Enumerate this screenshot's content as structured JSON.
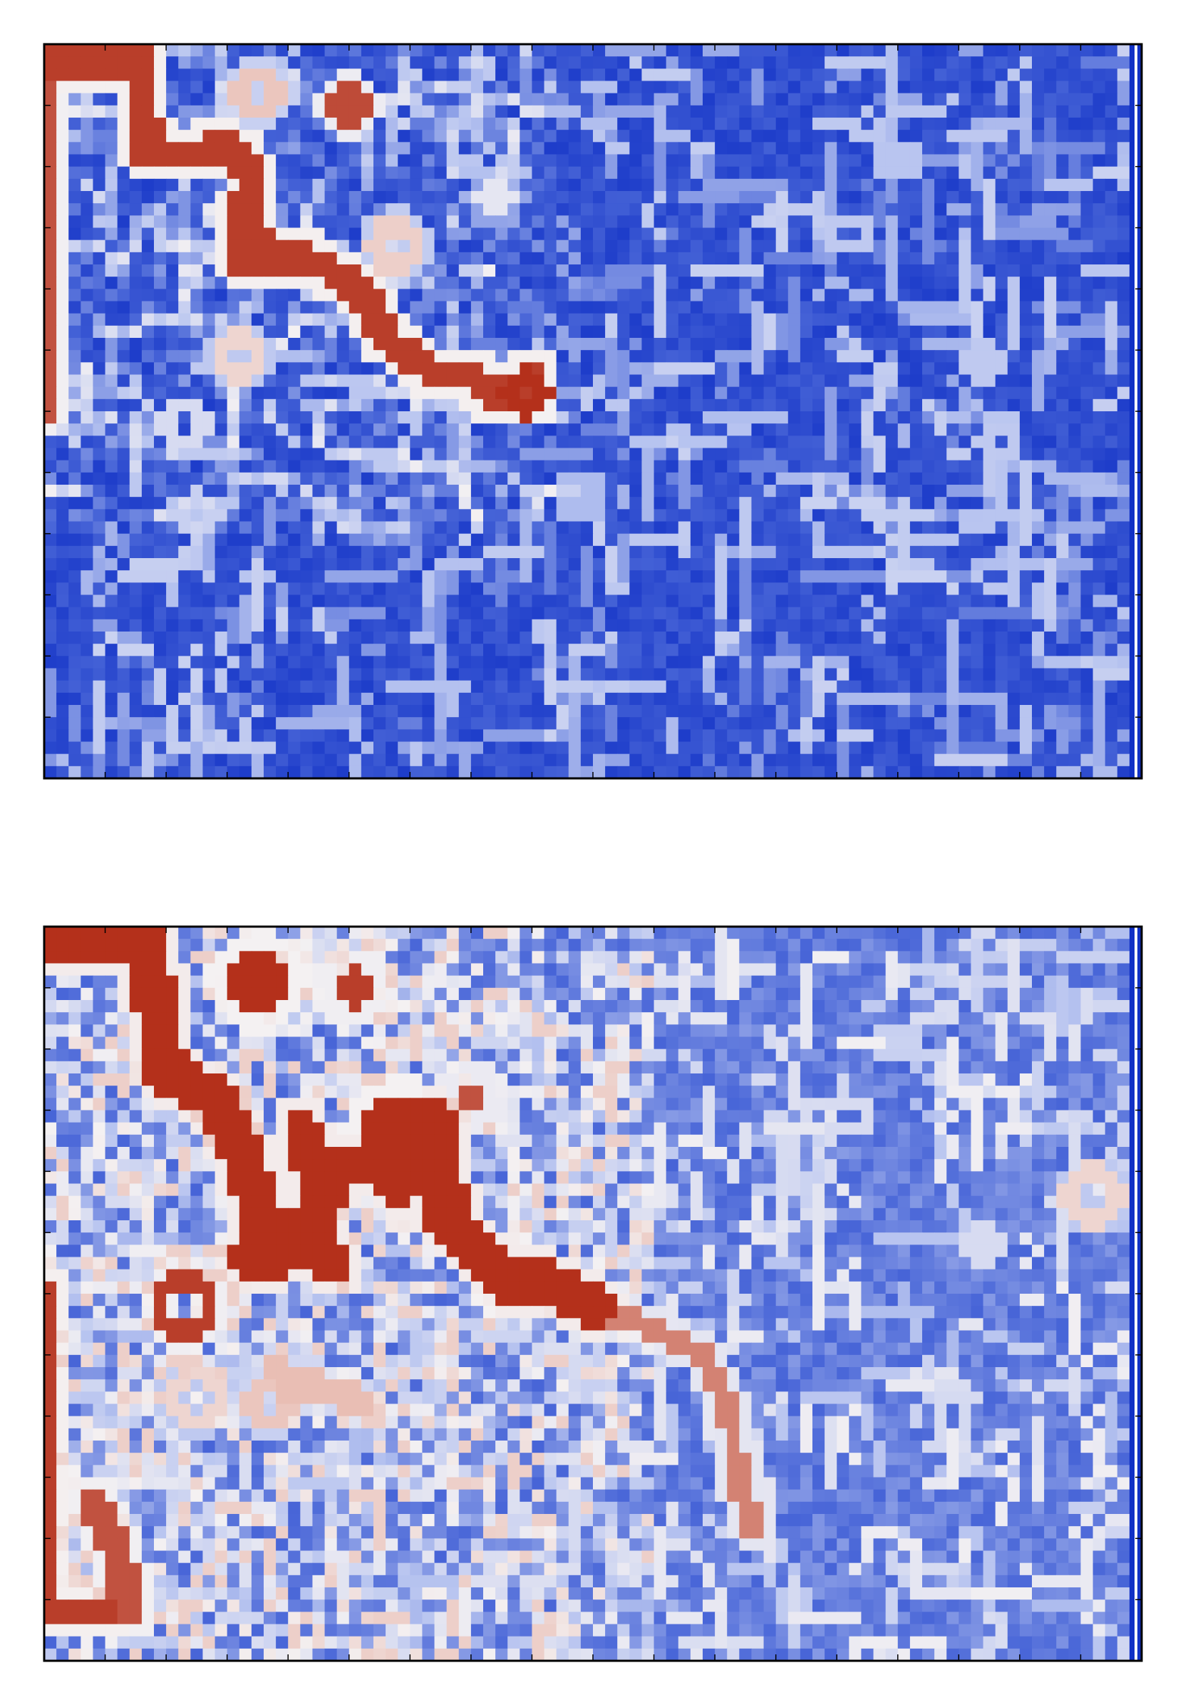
{
  "figure": {
    "background": "#ffffff"
  },
  "chart_data": [
    {
      "type": "heatmap",
      "panel": "top",
      "title": "",
      "xlabel": "",
      "ylabel": "",
      "grid_size": [
        90,
        60
      ],
      "colormap": "coolwarm",
      "colormap_stops": [
        "#0b2bc4",
        "#4a67d8",
        "#b9c5f0",
        "#f4f1f2",
        "#e8b8ad",
        "#b4301b"
      ],
      "value_range": [
        0,
        1
      ],
      "tick_labels": "hidden",
      "background_level": 0.12,
      "hot_paths": [
        {
          "level": 0.98,
          "width": 1.2,
          "points": [
            [
              0,
              1.5
            ],
            [
              8,
              1.5
            ],
            [
              8.5,
              9
            ],
            [
              13,
              9
            ],
            [
              14,
              8
            ],
            [
              16,
              9
            ],
            [
              17,
              11
            ],
            [
              16,
              16
            ],
            [
              16.5,
              18
            ],
            [
              19,
              18
            ],
            [
              21,
              17
            ],
            [
              24,
              19
            ],
            [
              26,
              20
            ],
            [
              28,
              24
            ],
            [
              32,
              27
            ],
            [
              35,
              27
            ],
            [
              37,
              29
            ],
            [
              40,
              27
            ]
          ]
        },
        {
          "level": 0.95,
          "width": 1.0,
          "points": [
            [
              0,
              1.5
            ],
            [
              0,
              30
            ]
          ]
        },
        {
          "level": 0.98,
          "width": 1.0,
          "points": [
            [
              17,
              12
            ],
            [
              18,
              18
            ]
          ]
        }
      ],
      "hot_rings": [
        {
          "cx": 17.5,
          "cy": 4.0,
          "r": 1.6,
          "level": 0.75
        },
        {
          "cx": 25.0,
          "cy": 5.0,
          "r": 1.2,
          "level": 0.96
        },
        {
          "cx": 28.8,
          "cy": 16.5,
          "r": 1.6,
          "level": 0.72
        },
        {
          "cx": 16.0,
          "cy": 25.5,
          "r": 1.4,
          "level": 0.7
        },
        {
          "cx": 37.0,
          "cy": 12.5,
          "r": 1.0,
          "level": 0.55
        },
        {
          "cx": 39.5,
          "cy": 28.5,
          "r": 1.4,
          "level": 1.0
        }
      ],
      "cold_rings": [
        {
          "cx": 11.5,
          "cy": 31.0,
          "r": 1.4,
          "level": 0.5
        },
        {
          "cx": 12.5,
          "cy": 38.5,
          "r": 1.3,
          "level": 0.45
        },
        {
          "cx": 66.0,
          "cy": 15.5,
          "r": 1.3,
          "level": 0.42
        },
        {
          "cx": 77.0,
          "cy": 26.0,
          "r": 1.2,
          "level": 0.42
        },
        {
          "cx": 78.5,
          "cy": 32.5,
          "r": 1.2,
          "level": 0.42
        },
        {
          "cx": 44.0,
          "cy": 37.0,
          "r": 1.4,
          "level": 0.38
        },
        {
          "cx": 70.0,
          "cy": 9.5,
          "r": 1.2,
          "level": 0.4
        }
      ],
      "light_zone": {
        "x": [
          0,
          42
        ],
        "y": [
          0,
          40
        ],
        "boost": 0.12
      }
    },
    {
      "type": "heatmap",
      "panel": "bottom",
      "title": "",
      "xlabel": "",
      "ylabel": "",
      "grid_size": [
        90,
        60
      ],
      "colormap": "coolwarm",
      "colormap_stops": [
        "#0b2bc4",
        "#4a67d8",
        "#b9c5f0",
        "#f4f1f2",
        "#e8b8ad",
        "#b4301b"
      ],
      "value_range": [
        0,
        1
      ],
      "tick_labels": "hidden",
      "background_level": 0.25,
      "hot_paths": [
        {
          "level": 1.0,
          "width": 1.8,
          "points": [
            [
              0,
              1
            ],
            [
              8,
              1
            ],
            [
              9,
              5
            ],
            [
              10,
              12
            ],
            [
              14,
              14
            ],
            [
              16,
              18
            ],
            [
              18,
              24
            ],
            [
              17,
              27
            ],
            [
              19,
              27
            ],
            [
              22,
              24
            ],
            [
              24,
              20
            ],
            [
              27,
              19
            ],
            [
              29,
              21
            ],
            [
              30,
              18
            ],
            [
              32,
              16
            ],
            [
              33,
              24
            ],
            [
              36,
              27
            ],
            [
              38,
              29
            ],
            [
              41,
              29
            ],
            [
              45,
              31
            ]
          ]
        },
        {
          "level": 1.0,
          "width": 1.5,
          "points": [
            [
              21,
              16
            ],
            [
              22,
              20
            ],
            [
              22,
              26
            ],
            [
              24,
              28
            ]
          ]
        },
        {
          "level": 0.98,
          "width": 1.4,
          "points": [
            [
              0,
              30
            ],
            [
              0,
              56
            ],
            [
              5,
              56
            ]
          ]
        },
        {
          "level": 0.95,
          "width": 1.2,
          "points": [
            [
              4,
              47
            ],
            [
              6,
              51
            ],
            [
              7,
              56
            ]
          ]
        },
        {
          "level": 0.88,
          "width": 0.9,
          "points": [
            [
              45,
              31
            ],
            [
              50,
              33
            ],
            [
              54,
              35
            ],
            [
              56,
              39
            ],
            [
              57,
              45
            ],
            [
              58,
              49
            ]
          ]
        },
        {
          "level": 0.78,
          "width": 0.8,
          "points": [
            [
              19,
              36
            ],
            [
              25,
              38
            ]
          ]
        },
        {
          "level": 0.78,
          "width": 0.8,
          "points": [
            [
              20,
              38
            ],
            [
              26,
              39
            ]
          ]
        }
      ],
      "hot_rings": [
        {
          "cx": 17.5,
          "cy": 4.5,
          "r": 2.6,
          "fill": true,
          "level": 1.0
        },
        {
          "cx": 25.5,
          "cy": 5.0,
          "r": 1.8,
          "fill": true,
          "level": 0.98
        },
        {
          "cx": 29.0,
          "cy": 16.5,
          "r": 3.0,
          "fill": true,
          "level": 1.0
        },
        {
          "cx": 35.0,
          "cy": 14.0,
          "r": 1.5,
          "fill": true,
          "level": 0.95
        },
        {
          "cx": 11.5,
          "cy": 31.0,
          "r": 2.2,
          "level": 0.98
        },
        {
          "cx": 12.5,
          "cy": 38.5,
          "r": 1.8,
          "level": 0.7
        },
        {
          "cx": 18.5,
          "cy": 39.0,
          "r": 1.4,
          "level": 0.75
        },
        {
          "cx": 38.0,
          "cy": 28.5,
          "r": 2.0,
          "fill": true,
          "level": 1.0
        },
        {
          "cx": 86.0,
          "cy": 22.0,
          "r": 1.8,
          "level": 0.7
        }
      ],
      "cold_rings": [
        {
          "cx": 66.0,
          "cy": 15.5,
          "r": 1.3,
          "level": 0.5
        },
        {
          "cx": 70.0,
          "cy": 9.5,
          "r": 1.3,
          "level": 0.45
        },
        {
          "cx": 77.0,
          "cy": 26.0,
          "r": 1.2,
          "level": 0.5
        },
        {
          "cx": 44.0,
          "cy": 37.0,
          "r": 1.4,
          "level": 0.45
        }
      ],
      "light_zone": {
        "x": [
          0,
          50
        ],
        "y": [
          0,
          60
        ],
        "boost": 0.28
      }
    }
  ]
}
